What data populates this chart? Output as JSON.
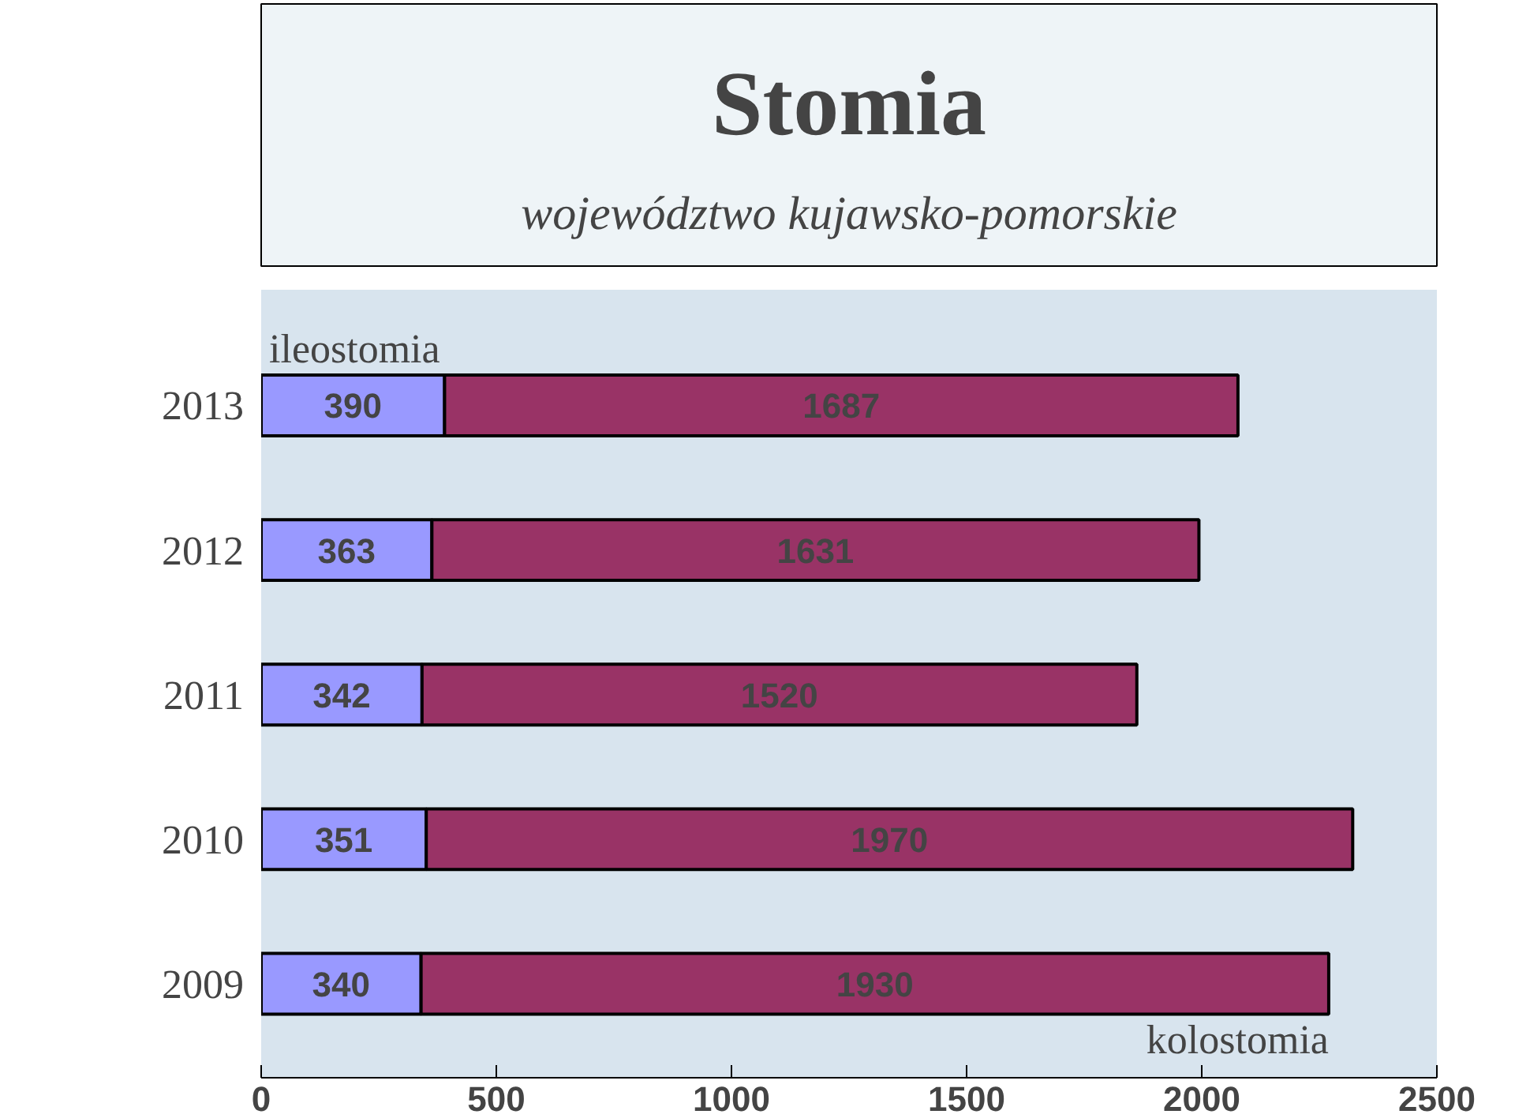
{
  "chart_data": {
    "type": "bar",
    "title": "Stomia",
    "subtitle": "województwo kujawsko-pomorskie",
    "orientation": "horizontal",
    "stacked": true,
    "categories": [
      "2013",
      "2012",
      "2011",
      "2010",
      "2009"
    ],
    "series": [
      {
        "name": "ileostomia",
        "color": "#9999ff",
        "values": [
          390,
          363,
          342,
          351,
          340
        ]
      },
      {
        "name": "kolostomia",
        "color": "#993366",
        "values": [
          1687,
          1631,
          1520,
          1970,
          1930
        ]
      }
    ],
    "xlim": [
      0,
      2500
    ],
    "xticks": [
      0,
      500,
      1000,
      1500,
      2000,
      2500
    ],
    "data_labels": true,
    "grid": false
  }
}
